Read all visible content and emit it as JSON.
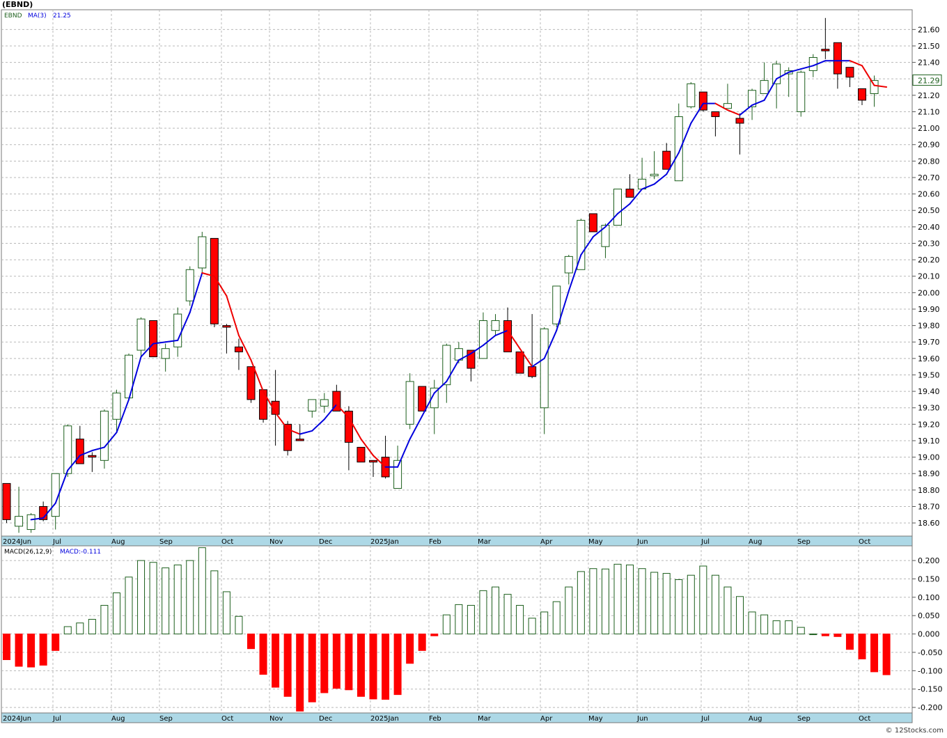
{
  "header": {
    "symbol_title": "(EBND)",
    "copyright": "© 12Stocks.com"
  },
  "price_panel": {
    "legend_symbol": "EBND",
    "legend_ma": "MA(3)",
    "legend_ma_value": "21.25",
    "last_price_label": "21.29"
  },
  "macd_panel": {
    "legend_label": "MACD(26,12,9)",
    "legend_value": "MACD:-0.111"
  },
  "colors": {
    "up_candle": "#1b5e1b",
    "down_candle": "#ff0000",
    "ma_up": "#0000dd",
    "ma_down": "#ee0000",
    "macd_positive": "#1b5e1b",
    "macd_negative": "#ff0000",
    "axis_band": "#add8e6",
    "grid": "#b8b8b8"
  },
  "chart_data": [
    {
      "type": "candlestick",
      "title": "(EBND)",
      "ylim": [
        18.52,
        21.72
      ],
      "y_ticks": [
        "18.60",
        "18.70",
        "18.80",
        "18.90",
        "19.00",
        "19.10",
        "19.20",
        "19.30",
        "19.40",
        "19.50",
        "19.60",
        "19.70",
        "19.80",
        "19.90",
        "20.00",
        "20.10",
        "20.20",
        "20.30",
        "20.40",
        "20.50",
        "20.60",
        "20.70",
        "20.80",
        "20.90",
        "21.00",
        "21.10",
        "21.20",
        "21.30",
        "21.40",
        "21.50",
        "21.60"
      ],
      "x_ticks": [
        "2024Jun",
        "Jul",
        "Aug",
        "Sep",
        "Oct",
        "Nov",
        "Dec",
        "2025Jan",
        "Feb",
        "Mar",
        "Apr",
        "May",
        "Jun",
        "Jul",
        "Aug",
        "Sep",
        "Oct"
      ],
      "candles": [
        {
          "o": 18.84,
          "h": 18.84,
          "l": 18.6,
          "c": 18.62
        },
        {
          "o": 18.58,
          "h": 18.82,
          "l": 18.54,
          "c": 18.64
        },
        {
          "o": 18.56,
          "h": 18.66,
          "l": 18.54,
          "c": 18.65
        },
        {
          "o": 18.7,
          "h": 18.73,
          "l": 18.61,
          "c": 18.62
        },
        {
          "o": 18.64,
          "h": 18.9,
          "l": 18.56,
          "c": 18.9
        },
        {
          "o": 18.9,
          "h": 19.2,
          "l": 18.88,
          "c": 19.19
        },
        {
          "o": 19.11,
          "h": 19.19,
          "l": 18.96,
          "c": 18.96
        },
        {
          "o": 19.01,
          "h": 19.03,
          "l": 18.91,
          "c": 19.0
        },
        {
          "o": 18.98,
          "h": 19.29,
          "l": 18.93,
          "c": 19.28
        },
        {
          "o": 19.23,
          "h": 19.41,
          "l": 19.15,
          "c": 19.39
        },
        {
          "o": 19.36,
          "h": 19.63,
          "l": 19.35,
          "c": 19.62
        },
        {
          "o": 19.65,
          "h": 19.85,
          "l": 19.61,
          "c": 19.84
        },
        {
          "o": 19.83,
          "h": 19.83,
          "l": 19.61,
          "c": 19.61
        },
        {
          "o": 19.6,
          "h": 19.69,
          "l": 19.52,
          "c": 19.66
        },
        {
          "o": 19.67,
          "h": 19.91,
          "l": 19.61,
          "c": 19.87
        },
        {
          "o": 19.95,
          "h": 20.16,
          "l": 19.92,
          "c": 20.14
        },
        {
          "o": 20.15,
          "h": 20.37,
          "l": 20.11,
          "c": 20.34
        },
        {
          "o": 20.33,
          "h": 20.33,
          "l": 19.79,
          "c": 19.81
        },
        {
          "o": 19.8,
          "h": 19.81,
          "l": 19.63,
          "c": 19.79
        },
        {
          "o": 19.67,
          "h": 19.72,
          "l": 19.53,
          "c": 19.64
        },
        {
          "o": 19.55,
          "h": 19.55,
          "l": 19.33,
          "c": 19.35
        },
        {
          "o": 19.41,
          "h": 19.41,
          "l": 19.21,
          "c": 19.23
        },
        {
          "o": 19.34,
          "h": 19.53,
          "l": 19.07,
          "c": 19.26
        },
        {
          "o": 19.2,
          "h": 19.22,
          "l": 19.01,
          "c": 19.04
        },
        {
          "o": 19.11,
          "h": 19.2,
          "l": 19.1,
          "c": 19.1
        },
        {
          "o": 19.28,
          "h": 19.35,
          "l": 19.24,
          "c": 19.35
        },
        {
          "o": 19.31,
          "h": 19.39,
          "l": 19.27,
          "c": 19.35
        },
        {
          "o": 19.4,
          "h": 19.44,
          "l": 19.28,
          "c": 19.28
        },
        {
          "o": 19.28,
          "h": 19.31,
          "l": 18.92,
          "c": 19.09
        },
        {
          "o": 19.06,
          "h": 19.06,
          "l": 18.97,
          "c": 18.97
        },
        {
          "o": 18.98,
          "h": 18.98,
          "l": 18.88,
          "c": 18.97
        },
        {
          "o": 19.0,
          "h": 19.13,
          "l": 18.87,
          "c": 18.88
        },
        {
          "o": 18.81,
          "h": 19.07,
          "l": 18.81,
          "c": 18.98
        },
        {
          "o": 19.2,
          "h": 19.51,
          "l": 19.17,
          "c": 19.46
        },
        {
          "o": 19.43,
          "h": 19.43,
          "l": 19.28,
          "c": 19.28
        },
        {
          "o": 19.3,
          "h": 19.47,
          "l": 19.14,
          "c": 19.42
        },
        {
          "o": 19.44,
          "h": 19.69,
          "l": 19.33,
          "c": 19.68
        },
        {
          "o": 19.59,
          "h": 19.7,
          "l": 19.57,
          "c": 19.66
        },
        {
          "o": 19.65,
          "h": 19.65,
          "l": 19.46,
          "c": 19.54
        },
        {
          "o": 19.6,
          "h": 19.88,
          "l": 19.6,
          "c": 19.83
        },
        {
          "o": 19.77,
          "h": 19.87,
          "l": 19.74,
          "c": 19.83
        },
        {
          "o": 19.83,
          "h": 19.91,
          "l": 19.64,
          "c": 19.64
        },
        {
          "o": 19.64,
          "h": 19.64,
          "l": 19.51,
          "c": 19.51
        },
        {
          "o": 19.55,
          "h": 19.87,
          "l": 19.48,
          "c": 19.49
        },
        {
          "o": 19.3,
          "h": 19.79,
          "l": 19.14,
          "c": 19.78
        },
        {
          "o": 19.81,
          "h": 20.04,
          "l": 19.79,
          "c": 20.04
        },
        {
          "o": 20.12,
          "h": 20.23,
          "l": 20.05,
          "c": 20.22
        },
        {
          "o": 20.14,
          "h": 20.45,
          "l": 20.14,
          "c": 20.44
        },
        {
          "o": 20.48,
          "h": 20.48,
          "l": 20.37,
          "c": 20.37
        },
        {
          "o": 20.28,
          "h": 20.42,
          "l": 20.21,
          "c": 20.41
        },
        {
          "o": 20.41,
          "h": 20.63,
          "l": 20.41,
          "c": 20.63
        },
        {
          "o": 20.63,
          "h": 20.72,
          "l": 20.58,
          "c": 20.58
        },
        {
          "o": 20.63,
          "h": 20.82,
          "l": 20.63,
          "c": 20.69
        },
        {
          "o": 20.71,
          "h": 20.86,
          "l": 20.69,
          "c": 20.72
        },
        {
          "o": 20.86,
          "h": 20.91,
          "l": 20.75,
          "c": 20.75
        },
        {
          "o": 20.68,
          "h": 21.15,
          "l": 20.68,
          "c": 21.07
        },
        {
          "o": 21.13,
          "h": 21.28,
          "l": 21.12,
          "c": 21.27
        },
        {
          "o": 21.22,
          "h": 21.22,
          "l": 21.1,
          "c": 21.11
        },
        {
          "o": 21.1,
          "h": 21.1,
          "l": 20.95,
          "c": 21.07
        },
        {
          "o": 21.12,
          "h": 21.27,
          "l": 21.12,
          "c": 21.15
        },
        {
          "o": 21.06,
          "h": 21.09,
          "l": 20.84,
          "c": 21.03
        },
        {
          "o": 21.13,
          "h": 21.24,
          "l": 21.05,
          "c": 21.23
        },
        {
          "o": 21.21,
          "h": 21.4,
          "l": 21.21,
          "c": 21.29
        },
        {
          "o": 21.27,
          "h": 21.41,
          "l": 21.12,
          "c": 21.39
        },
        {
          "o": 21.33,
          "h": 21.37,
          "l": 21.19,
          "c": 21.35
        },
        {
          "o": 21.1,
          "h": 21.35,
          "l": 21.07,
          "c": 21.34
        },
        {
          "o": 21.35,
          "h": 21.45,
          "l": 21.31,
          "c": 21.43
        },
        {
          "o": 21.48,
          "h": 21.67,
          "l": 21.42,
          "c": 21.47
        },
        {
          "o": 21.52,
          "h": 21.52,
          "l": 21.24,
          "c": 21.33
        },
        {
          "o": 21.37,
          "h": 21.37,
          "l": 21.25,
          "c": 21.31
        },
        {
          "o": 21.24,
          "h": 21.24,
          "l": 21.14,
          "c": 21.17
        },
        {
          "o": 21.21,
          "h": 21.32,
          "l": 21.13,
          "c": 21.29
        }
      ],
      "ma3": [
        null,
        null,
        18.62,
        18.63,
        18.72,
        18.92,
        19.01,
        19.04,
        19.06,
        19.15,
        19.35,
        19.61,
        19.69,
        19.7,
        19.71,
        19.88,
        20.12,
        20.1,
        19.98,
        19.74,
        19.59,
        19.4,
        19.27,
        19.17,
        19.14,
        19.16,
        19.23,
        19.32,
        19.24,
        19.11,
        19.01,
        18.94,
        18.94,
        19.11,
        19.25,
        19.39,
        19.46,
        19.59,
        19.63,
        19.68,
        19.74,
        19.77,
        19.66,
        19.55,
        19.6,
        19.77,
        20.01,
        20.23,
        20.34,
        20.4,
        20.48,
        20.54,
        20.63,
        20.66,
        20.72,
        20.85,
        21.03,
        21.15,
        21.15,
        21.11,
        21.08,
        21.14,
        21.17,
        21.3,
        21.34,
        21.36,
        21.38,
        21.41,
        21.41,
        21.41,
        21.38,
        21.26,
        21.25
      ]
    },
    {
      "type": "bar",
      "title": "MACD(26,12,9)",
      "ylim": [
        -0.215,
        0.24
      ],
      "y_ticks": [
        "0.200",
        "0.150",
        "0.100",
        "0.050",
        "0.000",
        "-0.050",
        "-0.100",
        "-0.150",
        "-0.200"
      ],
      "x_ticks": [
        "2024Jun",
        "Jul",
        "Aug",
        "Sep",
        "Oct",
        "Nov",
        "Dec",
        "2025Jan",
        "Feb",
        "Mar",
        "Apr",
        "May",
        "Jun",
        "Jul",
        "Aug",
        "Sep",
        "Oct"
      ],
      "values": [
        -0.07,
        -0.088,
        -0.09,
        -0.085,
        -0.045,
        0.02,
        0.03,
        0.04,
        0.078,
        0.112,
        0.155,
        0.2,
        0.195,
        0.18,
        0.188,
        0.2,
        0.235,
        0.172,
        0.115,
        0.048,
        -0.04,
        -0.11,
        -0.145,
        -0.17,
        -0.21,
        -0.185,
        -0.16,
        -0.148,
        -0.152,
        -0.17,
        -0.177,
        -0.178,
        -0.165,
        -0.08,
        -0.045,
        -0.005,
        0.052,
        0.08,
        0.078,
        0.118,
        0.128,
        0.108,
        0.078,
        0.043,
        0.06,
        0.088,
        0.128,
        0.17,
        0.178,
        0.177,
        0.19,
        0.188,
        0.178,
        0.168,
        0.165,
        0.148,
        0.16,
        0.185,
        0.16,
        0.128,
        0.102,
        0.06,
        0.052,
        0.036,
        0.036,
        0.018,
        0.0,
        -0.005,
        -0.007,
        -0.042,
        -0.068,
        -0.103,
        -0.111
      ]
    }
  ]
}
